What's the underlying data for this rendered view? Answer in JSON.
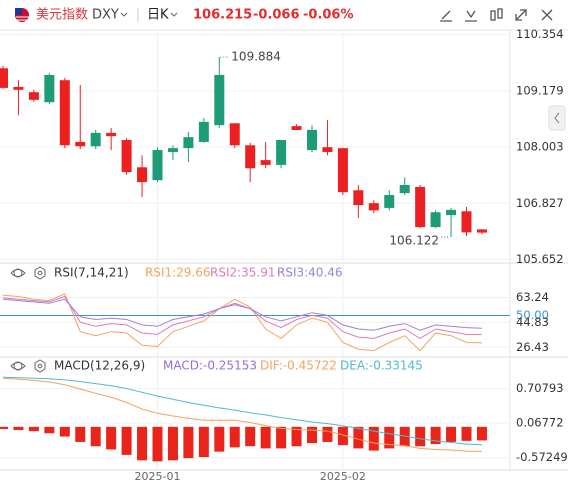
{
  "header": {
    "name": "美元指数",
    "symbol": "DXY",
    "period": "日K",
    "price": "106.215",
    "change": "-0.066",
    "change_pct": "-0.06%"
  },
  "chart_data": [
    {
      "type": "candlestick",
      "categories": [
        null,
        null,
        null,
        null,
        null,
        null,
        null,
        null,
        null,
        null,
        "2025-01",
        null,
        null,
        null,
        null,
        null,
        null,
        null,
        null,
        null,
        null,
        null,
        "2025-02",
        null,
        null,
        null,
        null,
        null,
        null,
        null,
        null,
        null
      ],
      "open": [
        109.65,
        109.26,
        109.15,
        108.94,
        109.4,
        108.11,
        108.02,
        108.3,
        108.15,
        107.58,
        107.31,
        107.9,
        107.98,
        108.11,
        108.46,
        108.5,
        108.04,
        107.73,
        107.63,
        108.44,
        107.94,
        108.0,
        107.98,
        107.1,
        106.83,
        106.73,
        107.04,
        107.17,
        106.33,
        106.58,
        106.66,
        106.281
      ],
      "high": [
        109.7,
        109.4,
        109.2,
        109.55,
        109.45,
        109.3,
        108.36,
        108.4,
        108.19,
        107.83,
        108.0,
        108.04,
        108.32,
        108.61,
        109.884,
        108.5,
        108.09,
        108.11,
        108.15,
        108.48,
        108.46,
        108.57,
        107.98,
        107.21,
        106.89,
        107.1,
        107.37,
        107.21,
        106.68,
        106.73,
        106.75,
        106.29
      ],
      "low": [
        109.22,
        108.67,
        108.95,
        108.9,
        107.98,
        107.96,
        107.96,
        107.94,
        107.42,
        106.96,
        107.27,
        107.73,
        107.69,
        108.09,
        108.4,
        107.98,
        107.27,
        107.56,
        107.56,
        108.36,
        107.9,
        107.83,
        107.0,
        106.52,
        106.62,
        106.68,
        107.0,
        106.31,
        106.31,
        106.122,
        106.14,
        106.18
      ],
      "close": [
        109.24,
        109.2,
        108.99,
        109.51,
        108.04,
        108.02,
        108.3,
        108.23,
        107.48,
        107.27,
        107.94,
        107.98,
        108.21,
        108.53,
        109.51,
        108.04,
        107.56,
        107.63,
        108.15,
        108.36,
        108.36,
        107.9,
        107.06,
        106.79,
        106.68,
        107.0,
        107.21,
        106.33,
        106.64,
        106.69,
        106.22,
        106.215
      ],
      "up_color": "#1e9c78",
      "down_color": "#ec2020",
      "ylim": [
        105.6,
        110.45
      ],
      "yticks": [
        110.354,
        109.179,
        108.003,
        106.827,
        105.652
      ],
      "grid": true
    },
    {
      "type": "line",
      "title": "RSI(7,14,21)",
      "series": [
        {
          "name": "RSI1:29.66",
          "color": "#f5a35c",
          "values": [
            65,
            64,
            62,
            61,
            66,
            38,
            35,
            38,
            37,
            28,
            27,
            38,
            42,
            46,
            55,
            62,
            56,
            40,
            33,
            43,
            48,
            45,
            30,
            25,
            24,
            30,
            35,
            24,
            37,
            35,
            30,
            29.66
          ]
        },
        {
          "name": "RSI2:35.91",
          "color": "#e07ab4",
          "values": [
            63,
            62,
            61,
            60,
            64,
            45,
            42,
            44,
            43,
            37,
            36,
            43,
            46,
            49,
            55,
            59,
            55,
            46,
            41,
            47,
            50,
            48,
            38,
            34,
            33,
            37,
            40,
            33,
            40,
            38,
            36,
            35.91
          ]
        },
        {
          "name": "RSI3:40.46",
          "color": "#9a82d8",
          "values": [
            62,
            61,
            60,
            59,
            62,
            49,
            47,
            48,
            47,
            43,
            42,
            47,
            49,
            51,
            55,
            58,
            55,
            49,
            46,
            49,
            52,
            50,
            43,
            40,
            39,
            42,
            44,
            39,
            43,
            42,
            41,
            40.46
          ]
        }
      ],
      "ylim": [
        20,
        74
      ],
      "yticks": [
        63.24,
        {
          "value": 50,
          "label": "50.00",
          "color": "#3a8ee6"
        },
        44.83,
        26.43
      ]
    },
    {
      "type": "macd",
      "title": "MACD(12,26,9)",
      "series": [
        {
          "name": "MACD:-0.25153",
          "color": "#9b6cd8",
          "kind": "bar",
          "bar_color": "#e8241b",
          "values": [
            -0.04,
            -0.06,
            -0.08,
            -0.12,
            -0.18,
            -0.28,
            -0.36,
            -0.42,
            -0.52,
            -0.62,
            -0.64,
            -0.62,
            -0.58,
            -0.56,
            -0.46,
            -0.38,
            -0.36,
            -0.4,
            -0.4,
            -0.36,
            -0.3,
            -0.28,
            -0.34,
            -0.4,
            -0.44,
            -0.4,
            -0.36,
            -0.36,
            -0.32,
            -0.28,
            -0.26,
            -0.25153
          ]
        },
        {
          "name": "DIF:-0.45722",
          "color": "#f5a35c",
          "kind": "line",
          "values": [
            0.9,
            0.88,
            0.86,
            0.83,
            0.78,
            0.7,
            0.62,
            0.55,
            0.45,
            0.33,
            0.25,
            0.2,
            0.16,
            0.12,
            0.12,
            0.12,
            0.08,
            0.02,
            -0.03,
            -0.05,
            -0.06,
            -0.08,
            -0.15,
            -0.23,
            -0.3,
            -0.33,
            -0.35,
            -0.4,
            -0.42,
            -0.43,
            -0.45,
            -0.45722
          ]
        },
        {
          "name": "DEA:-0.33145",
          "color": "#4dbccc",
          "kind": "line",
          "values": [
            0.92,
            0.91,
            0.9,
            0.89,
            0.87,
            0.84,
            0.8,
            0.76,
            0.71,
            0.64,
            0.57,
            0.51,
            0.45,
            0.4,
            0.35,
            0.31,
            0.26,
            0.22,
            0.17,
            0.13,
            0.09,
            0.06,
            0.02,
            -0.03,
            -0.08,
            -0.13,
            -0.17,
            -0.22,
            -0.26,
            -0.29,
            -0.32,
            -0.33145
          ]
        }
      ],
      "ylim": [
        -0.8,
        0.96
      ],
      "yticks": [
        0.70793,
        0.06772,
        -0.57249
      ]
    }
  ]
}
